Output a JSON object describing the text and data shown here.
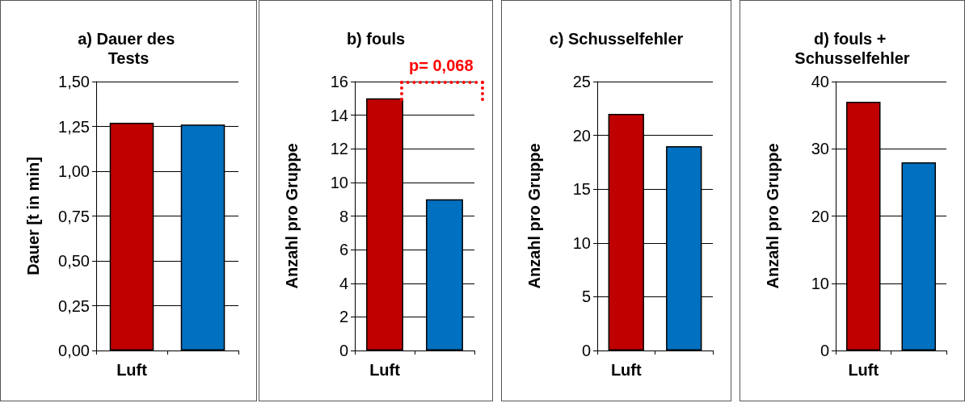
{
  "chart_data": [
    {
      "type": "bar",
      "title": "a) Dauer des Tests",
      "ylabel": "Dauer [t in min]",
      "categories": [
        "Luft",
        null
      ],
      "colors": [
        "#c00000",
        "#0070c0"
      ],
      "values": [
        1.27,
        1.26
      ],
      "ylim": [
        0,
        1.5
      ],
      "yticks": [
        {
          "value": 0,
          "label": "0,00"
        },
        {
          "value": 0.25,
          "label": "0,25"
        },
        {
          "value": 0.5,
          "label": "0,50"
        },
        {
          "value": 0.75,
          "label": "0,75"
        },
        {
          "value": 1,
          "label": "1,00"
        },
        {
          "value": 1.25,
          "label": "1,25"
        },
        {
          "value": 1.5,
          "label": "1,50"
        }
      ],
      "grid": "y"
    },
    {
      "type": "bar",
      "title": "b) fouls",
      "ylabel": "Anzahl pro Gruppe",
      "categories": [
        "Luft",
        null
      ],
      "colors": [
        "#c00000",
        "#0070c0"
      ],
      "values": [
        15,
        9
      ],
      "ylim": [
        0,
        16
      ],
      "yticks": [
        0,
        2,
        4,
        6,
        8,
        10,
        12,
        14,
        16
      ],
      "grid": "y",
      "annotations": [
        "p= 0,068"
      ]
    },
    {
      "type": "bar",
      "title": "c) Schusselfehler",
      "ylabel": "Anzahl pro Gruppe",
      "categories": [
        "Luft",
        null
      ],
      "colors": [
        "#c00000",
        "#0070c0"
      ],
      "values": [
        22,
        19
      ],
      "ylim": [
        0,
        25
      ],
      "yticks": [
        0,
        5,
        10,
        15,
        20,
        25
      ],
      "grid": "y"
    },
    {
      "type": "bar",
      "title": "d) fouls + Schusselfehler",
      "ylabel": "Anzahl pro Gruppe",
      "categories": [
        "Luft",
        null
      ],
      "colors": [
        "#c00000",
        "#0070c0"
      ],
      "values": [
        37,
        28
      ],
      "ylim": [
        0,
        40
      ],
      "yticks": [
        0,
        10,
        20,
        30,
        40
      ],
      "grid": "y"
    }
  ]
}
